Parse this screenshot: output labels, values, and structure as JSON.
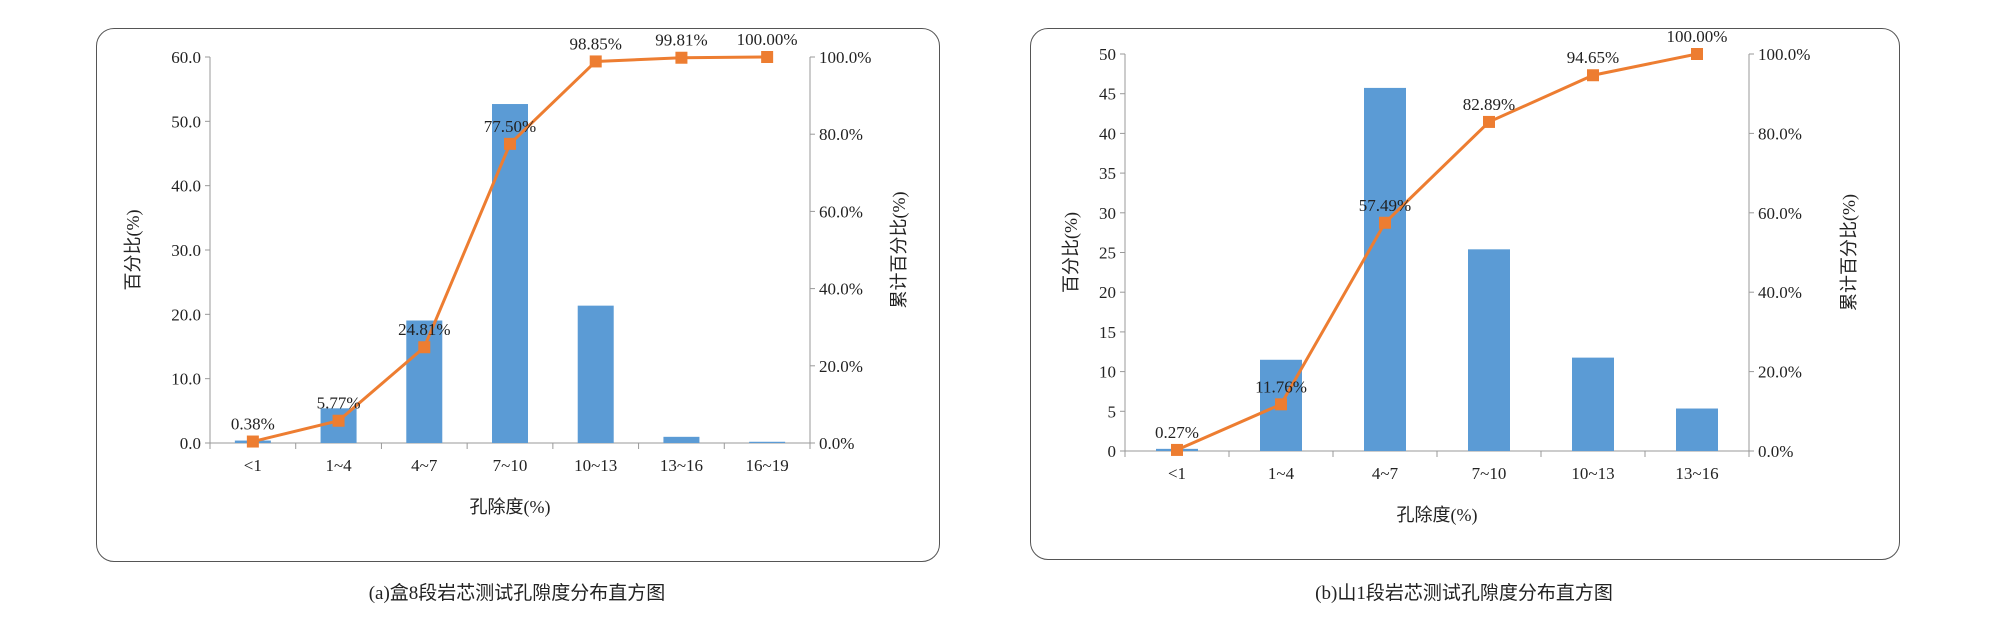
{
  "colors": {
    "bar": "#5b9bd5",
    "line": "#ed7d31",
    "axis": "#999999"
  },
  "chart_data": [
    {
      "type": "bar",
      "categories": [
        "<1",
        "1~4",
        "4~7",
        "7~10",
        "10~13",
        "13~16",
        "16~19"
      ],
      "series": [
        {
          "name": "百分比(%)",
          "type": "bar",
          "values": [
            0.38,
            5.39,
            19.04,
            52.69,
            21.35,
            0.96,
            0.19
          ]
        },
        {
          "name": "累计百分比(%)",
          "type": "line",
          "values": [
            0.38,
            5.77,
            24.81,
            77.5,
            98.85,
            99.81,
            100.0
          ],
          "axis": "right"
        }
      ],
      "point_labels": [
        "0.38%",
        "5.77%",
        "24.81%",
        "77.50%",
        "98.85%",
        "99.81%",
        "100.00%"
      ],
      "xlabel": "孔除度(%)",
      "ylabel": "百分比(%)",
      "y2label": "累计百分比(%)",
      "ylim": [
        0,
        60
      ],
      "y2lim": [
        0,
        100
      ],
      "yticks": [
        "0.0",
        "10.0",
        "20.0",
        "30.0",
        "40.0",
        "50.0",
        "60.0"
      ],
      "y2ticks": [
        "0.0%",
        "20.0%",
        "40.0%",
        "60.0%",
        "80.0%",
        "100.0%"
      ],
      "caption": "(a)盒8段岩芯测试孔隙度分布直方图"
    },
    {
      "type": "bar",
      "categories": [
        "<1",
        "1~4",
        "4~7",
        "7~10",
        "10~13",
        "13~16"
      ],
      "series": [
        {
          "name": "百分比(%)",
          "type": "bar",
          "values": [
            0.27,
            11.49,
            45.73,
            25.4,
            11.76,
            5.35
          ]
        },
        {
          "name": "累计百分比(%)",
          "type": "line",
          "values": [
            0.27,
            11.76,
            57.49,
            82.89,
            94.65,
            100.0
          ],
          "axis": "right"
        }
      ],
      "point_labels": [
        "0.27%",
        "11.76%",
        "57.49%",
        "82.89%",
        "94.65%",
        "100.00%"
      ],
      "xlabel": "孔除度(%)",
      "ylabel": "百分比(%)",
      "y2label": "累计百分比(%)",
      "ylim": [
        0,
        50
      ],
      "y2lim": [
        0,
        100
      ],
      "yticks": [
        "0",
        "5",
        "10",
        "15",
        "20",
        "25",
        "30",
        "35",
        "40",
        "45",
        "50"
      ],
      "y2ticks": [
        "0.0%",
        "20.0%",
        "40.0%",
        "60.0%",
        "80.0%",
        "100.0%"
      ],
      "caption": "(b)山1段岩芯测试孔隙度分布直方图"
    }
  ]
}
